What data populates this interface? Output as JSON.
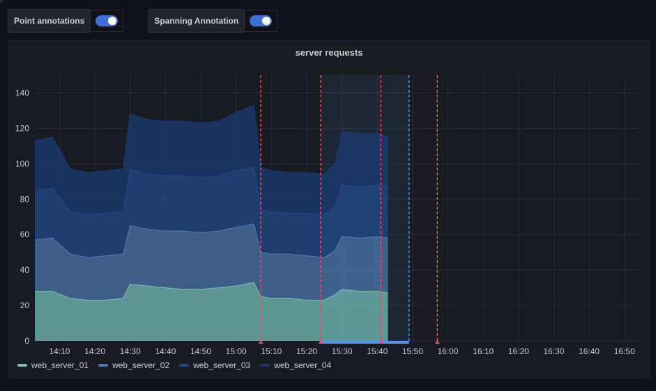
{
  "controls": [
    {
      "label": "Point annotations",
      "on": true
    },
    {
      "label": "Spanning Annotation",
      "on": true
    }
  ],
  "panel": {
    "title": "server requests"
  },
  "colors": {
    "background": "#111217",
    "panel": "#181b1f",
    "grid": "#2a2d33",
    "accent": "#3d71d9",
    "annotation_point": "#f2495c",
    "annotation_span": "#5794f2",
    "web_server_01": "#73bfb8",
    "web_server_02": "#4f79b5",
    "web_server_03": "#22498a",
    "web_server_04": "#1a3a72"
  },
  "chart_data": {
    "type": "area",
    "stacked": true,
    "title": "server requests",
    "x_unit": "time",
    "xlim": [
      "14:03",
      "16:54"
    ],
    "ylim": [
      0,
      150
    ],
    "yticks": [
      0,
      20,
      40,
      60,
      80,
      100,
      120,
      140
    ],
    "xticks": [
      "14:10",
      "14:20",
      "14:30",
      "14:40",
      "14:50",
      "15:00",
      "15:10",
      "15:20",
      "15:30",
      "15:40",
      "15:50",
      "16:00",
      "16:10",
      "16:20",
      "16:30",
      "16:40",
      "16:50"
    ],
    "grid": true,
    "legend_position": "bottom-left",
    "x": [
      "14:03",
      "14:08",
      "14:13",
      "14:18",
      "14:23",
      "14:28",
      "14:30",
      "14:35",
      "14:40",
      "14:45",
      "14:50",
      "14:55",
      "15:00",
      "15:05",
      "15:07",
      "15:10",
      "15:15",
      "15:20",
      "15:25",
      "15:28",
      "15:30",
      "15:35",
      "15:40",
      "15:43"
    ],
    "series": [
      {
        "name": "web_server_01",
        "values": [
          28,
          28,
          24,
          23,
          23,
          24,
          32,
          31,
          30,
          29,
          29,
          30,
          31,
          33,
          25,
          24,
          24,
          23,
          23,
          26,
          29,
          28,
          28,
          27
        ]
      },
      {
        "name": "web_server_02",
        "values": [
          29,
          30,
          25,
          24,
          25,
          25,
          33,
          32,
          32,
          33,
          32,
          32,
          33,
          33,
          25,
          25,
          25,
          25,
          24,
          25,
          30,
          30,
          31,
          31
        ]
      },
      {
        "name": "web_server_03",
        "values": [
          28,
          28,
          24,
          24,
          24,
          24,
          32,
          31,
          31,
          31,
          31,
          31,
          32,
          32,
          24,
          24,
          23,
          24,
          24,
          25,
          29,
          29,
          29,
          29
        ]
      },
      {
        "name": "web_server_04",
        "values": [
          28,
          29,
          24,
          24,
          24,
          24,
          31,
          31,
          31,
          31,
          31,
          31,
          33,
          35,
          24,
          23,
          23,
          23,
          23,
          24,
          30,
          30,
          29,
          28
        ]
      }
    ],
    "annotations": {
      "points": [
        "15:07",
        "15:24",
        "15:41",
        "15:57"
      ],
      "span": {
        "start": "15:24",
        "end": "15:49"
      }
    }
  },
  "legend": [
    "web_server_01",
    "web_server_02",
    "web_server_03",
    "web_server_04"
  ]
}
